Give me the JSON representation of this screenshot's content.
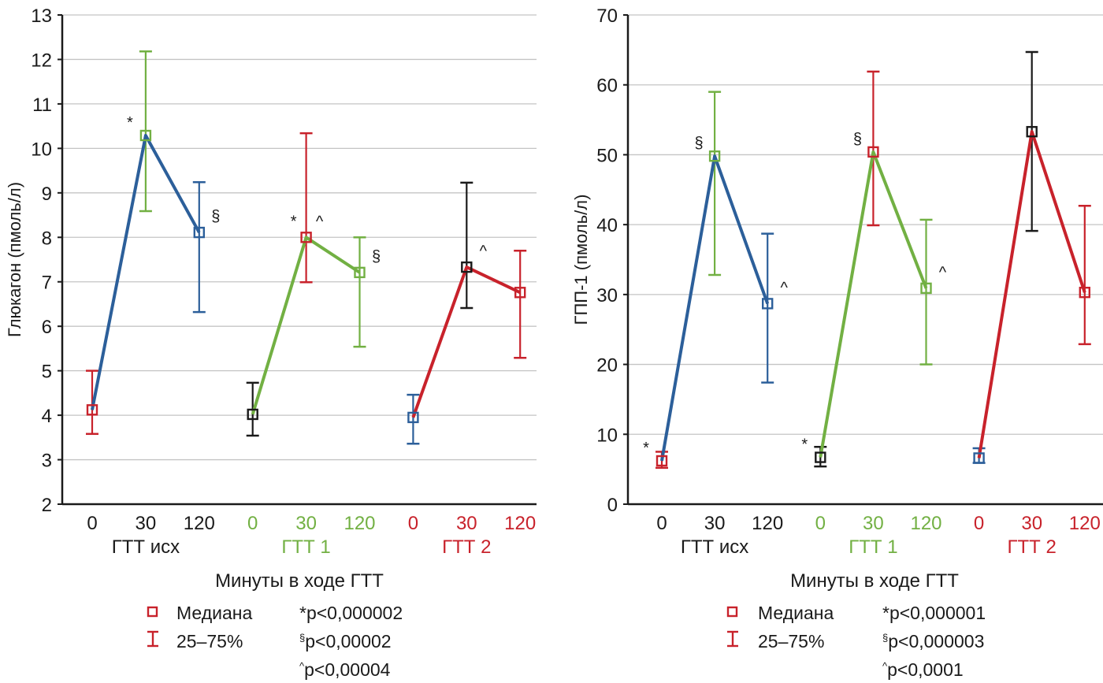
{
  "chart_data": [
    {
      "type": "line",
      "ylabel": "Глюкагон (пмоль/л)",
      "xlabel": "Минуты в ходе ГТТ",
      "ylim": [
        2,
        13
      ],
      "yticks": [
        2,
        3,
        4,
        5,
        6,
        7,
        8,
        9,
        10,
        11,
        12,
        13
      ],
      "grid": true,
      "groups": [
        {
          "name": "ГТТ исх",
          "color": "#1a1a1a",
          "line_color": "#2c5f9a",
          "ticks": [
            "0",
            "30",
            "120"
          ]
        },
        {
          "name": "ГТТ 1",
          "color": "#72b043",
          "line_color": "#72b043",
          "ticks": [
            "0",
            "30",
            "120"
          ]
        },
        {
          "name": "ГТТ 2",
          "color": "#c8222b",
          "line_color": "#c8222b",
          "ticks": [
            "0",
            "30",
            "120"
          ]
        }
      ],
      "points": [
        {
          "group": 0,
          "minute": "0",
          "median": 4.12,
          "q25": 3.58,
          "q75": 5.0,
          "color": "#c8222b",
          "annotation": ""
        },
        {
          "group": 0,
          "minute": "30",
          "median": 10.29,
          "q25": 8.59,
          "q75": 12.18,
          "color": "#72b043",
          "annotation": "*",
          "ann_side": "left"
        },
        {
          "group": 0,
          "minute": "120",
          "median": 8.11,
          "q25": 6.32,
          "q75": 9.24,
          "color": "#2c5f9a",
          "annotation": "§",
          "ann_side": "right"
        },
        {
          "group": 1,
          "minute": "0",
          "median": 4.02,
          "q25": 3.54,
          "q75": 4.73,
          "color": "#1a1a1a",
          "annotation": ""
        },
        {
          "group": 1,
          "minute": "30",
          "median": 8.0,
          "q25": 6.99,
          "q75": 10.34,
          "color": "#c8222b",
          "annotation": "* ^",
          "ann_side": "both"
        },
        {
          "group": 1,
          "minute": "120",
          "median": 7.21,
          "q25": 5.54,
          "q75": 8.0,
          "color": "#72b043",
          "annotation": "§",
          "ann_side": "right"
        },
        {
          "group": 2,
          "minute": "0",
          "median": 3.95,
          "q25": 3.36,
          "q75": 4.46,
          "color": "#2c5f9a",
          "annotation": ""
        },
        {
          "group": 2,
          "minute": "30",
          "median": 7.33,
          "q25": 6.41,
          "q75": 9.23,
          "color": "#1a1a1a",
          "annotation": "^",
          "ann_side": "right"
        },
        {
          "group": 2,
          "minute": "120",
          "median": 6.76,
          "q25": 5.29,
          "q75": 7.7,
          "color": "#c8222b",
          "annotation": ""
        }
      ],
      "legend": {
        "median_label": "Медиана",
        "iqr_label": "25–75%",
        "marker_color": "#c8222b",
        "pvalues": [
          {
            "symbol": "*",
            "text": "p<0,000002"
          },
          {
            "symbol": "§",
            "text": "p<0,00002"
          },
          {
            "symbol": "^",
            "text": "p<0,00004"
          }
        ]
      }
    },
    {
      "type": "line",
      "ylabel": "ГПП-1 (пмоль/л)",
      "xlabel": "Минуты в ходе ГТТ",
      "ylim": [
        0,
        70
      ],
      "yticks": [
        0,
        10,
        20,
        30,
        40,
        50,
        60,
        70
      ],
      "grid": true,
      "groups": [
        {
          "name": "ГТТ исх",
          "color": "#1a1a1a",
          "line_color": "#2c5f9a",
          "ticks": [
            "0",
            "30",
            "120"
          ]
        },
        {
          "name": "ГТТ 1",
          "color": "#72b043",
          "line_color": "#72b043",
          "ticks": [
            "0",
            "30",
            "120"
          ]
        },
        {
          "name": "ГТТ 2",
          "color": "#c8222b",
          "line_color": "#c8222b",
          "ticks": [
            "0",
            "30",
            "120"
          ]
        }
      ],
      "points": [
        {
          "group": 0,
          "minute": "0",
          "median": 6.2,
          "q25": 5.2,
          "q75": 7.5,
          "color": "#c8222b",
          "annotation": "*",
          "ann_side": "left"
        },
        {
          "group": 0,
          "minute": "30",
          "median": 49.8,
          "q25": 32.8,
          "q75": 59.0,
          "color": "#72b043",
          "annotation": "§",
          "ann_side": "left"
        },
        {
          "group": 0,
          "minute": "120",
          "median": 28.7,
          "q25": 17.4,
          "q75": 38.7,
          "color": "#2c5f9a",
          "annotation": "^",
          "ann_side": "right"
        },
        {
          "group": 1,
          "minute": "0",
          "median": 6.7,
          "q25": 5.4,
          "q75": 8.2,
          "color": "#1a1a1a",
          "annotation": "*",
          "ann_side": "left"
        },
        {
          "group": 1,
          "minute": "30",
          "median": 50.4,
          "q25": 39.9,
          "q75": 61.9,
          "color": "#c8222b",
          "annotation": "§",
          "ann_side": "left"
        },
        {
          "group": 1,
          "minute": "120",
          "median": 30.9,
          "q25": 20.0,
          "q75": 40.7,
          "color": "#72b043",
          "annotation": "^",
          "ann_side": "right"
        },
        {
          "group": 2,
          "minute": "0",
          "median": 6.6,
          "q25": 5.9,
          "q75": 8.0,
          "color": "#2c5f9a",
          "annotation": ""
        },
        {
          "group": 2,
          "minute": "30",
          "median": 53.3,
          "q25": 39.1,
          "q75": 64.7,
          "color": "#1a1a1a",
          "annotation": ""
        },
        {
          "group": 2,
          "minute": "120",
          "median": 30.3,
          "q25": 22.9,
          "q75": 42.7,
          "color": "#c8222b",
          "annotation": ""
        }
      ],
      "legend": {
        "median_label": "Медиана",
        "iqr_label": "25–75%",
        "marker_color": "#c8222b",
        "pvalues": [
          {
            "symbol": "*",
            "text": "p<0,000001"
          },
          {
            "symbol": "§",
            "text": "p<0,000003"
          },
          {
            "symbol": "^",
            "text": "p<0,0001"
          }
        ]
      }
    }
  ]
}
